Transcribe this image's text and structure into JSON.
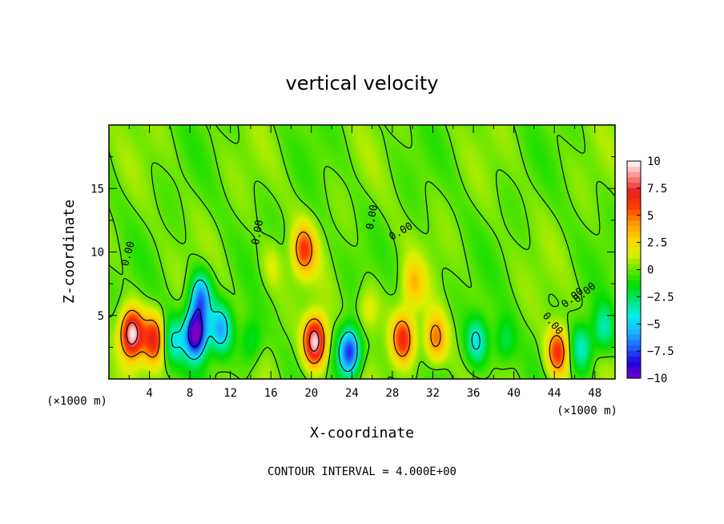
{
  "chart_data": {
    "type": "heatmap",
    "title": "vertical velocity",
    "xlabel": "X-coordinate",
    "ylabel": "Z-coordinate",
    "x_unit": "(×1000 m)",
    "y_unit": "(×1000 m)",
    "xlim": [
      0,
      50
    ],
    "ylim": [
      0,
      20
    ],
    "x_ticks": [
      "4",
      "8",
      "12",
      "16",
      "20",
      "24",
      "28",
      "32",
      "36",
      "40",
      "44",
      "48"
    ],
    "y_ticks": [
      "5",
      "10",
      "15"
    ],
    "colorbar": {
      "range": [
        -10,
        10
      ],
      "ticks": [
        "10",
        "7.5",
        "5",
        "2.5",
        "0",
        "-2.5",
        "-5",
        "-7.5",
        "-10"
      ],
      "colors": [
        "#7a00c8",
        "#2000e0",
        "#1e64ff",
        "#1eb4ff",
        "#00f0e6",
        "#00e678",
        "#00dc00",
        "#64e600",
        "#dcf000",
        "#ffd200",
        "#ff9600",
        "#ff3c00",
        "#e61e1e",
        "#ff8c8c",
        "#ffffff"
      ]
    },
    "contour_interval": "CONTOUR INTERVAL = 4.000E+00",
    "contour_labels": [
      "0.00",
      "0.00",
      "0.00",
      "0.00",
      "0.00",
      "0.00",
      "0.00"
    ],
    "features": [
      {
        "x": 2.2,
        "z": 3.6,
        "w": 9.8
      },
      {
        "x": 4.4,
        "z": 3.2,
        "w": 6.5
      },
      {
        "x": 8.5,
        "z": 3.6,
        "w": -10.5
      },
      {
        "x": 9.0,
        "z": 6.5,
        "w": -6.5
      },
      {
        "x": 11.0,
        "z": 4.0,
        "w": -5.5
      },
      {
        "x": 6.2,
        "z": 3.0,
        "w": -4.0
      },
      {
        "x": 19.2,
        "z": 10.2,
        "w": 5.5
      },
      {
        "x": 20.3,
        "z": 3.0,
        "w": 10.0
      },
      {
        "x": 23.7,
        "z": 2.2,
        "w": -8.5
      },
      {
        "x": 29.0,
        "z": 3.2,
        "w": 6.5
      },
      {
        "x": 32.2,
        "z": 3.2,
        "w": 5.0
      },
      {
        "x": 36.3,
        "z": 3.0,
        "w": -4.5
      },
      {
        "x": 39.0,
        "z": 3.0,
        "w": -2.5
      },
      {
        "x": 44.3,
        "z": 2.2,
        "w": 6.5
      },
      {
        "x": 46.6,
        "z": 2.5,
        "w": -4.0
      },
      {
        "x": 48.8,
        "z": 4.0,
        "w": -3.5
      },
      {
        "x": 30.0,
        "z": 7.5,
        "w": 3.0
      },
      {
        "x": 25.5,
        "z": 5.5,
        "w": 2.0
      },
      {
        "x": 14.0,
        "z": 3.0,
        "w": -2.5
      },
      {
        "x": 16.0,
        "z": 9.0,
        "w": 1.5
      }
    ],
    "grid": false,
    "legend": "colorbar-right"
  }
}
